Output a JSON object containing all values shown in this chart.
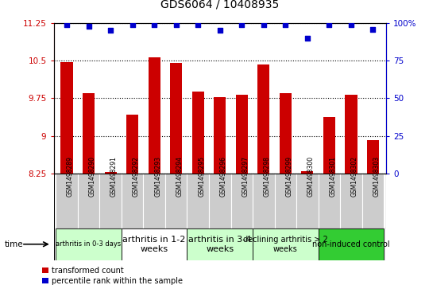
{
  "title": "GDS6064 / 10408935",
  "samples": [
    "GSM1498289",
    "GSM1498290",
    "GSM1498291",
    "GSM1498292",
    "GSM1498293",
    "GSM1498294",
    "GSM1498295",
    "GSM1498296",
    "GSM1498297",
    "GSM1498298",
    "GSM1498299",
    "GSM1498300",
    "GSM1498301",
    "GSM1498302",
    "GSM1498303"
  ],
  "red_values": [
    10.47,
    9.85,
    8.28,
    9.42,
    10.57,
    10.45,
    9.88,
    9.78,
    9.82,
    10.43,
    9.85,
    8.3,
    9.38,
    9.82,
    8.92
  ],
  "blue_values": [
    99,
    98,
    95,
    99,
    99,
    99,
    99,
    95,
    99,
    99,
    99,
    90,
    99,
    99,
    96
  ],
  "ylim_left": [
    8.25,
    11.25
  ],
  "ylim_right": [
    0,
    100
  ],
  "yticks_left": [
    8.25,
    9.0,
    9.75,
    10.5,
    11.25
  ],
  "ytick_labels_left": [
    "8.25",
    "9",
    "9.75",
    "10.5",
    "11.25"
  ],
  "yticks_right": [
    0,
    25,
    50,
    75,
    100
  ],
  "ytick_labels_right": [
    "0",
    "25",
    "50",
    "75",
    "100%"
  ],
  "groups": [
    {
      "label": "arthritis in 0-3 days",
      "start": 0,
      "end": 3,
      "color": "#ccffcc",
      "fontsize": 6
    },
    {
      "label": "arthritis in 1-2\nweeks",
      "start": 3,
      "end": 6,
      "color": "#ffffff",
      "fontsize": 8
    },
    {
      "label": "arthritis in 3-4\nweeks",
      "start": 6,
      "end": 9,
      "color": "#ccffcc",
      "fontsize": 8
    },
    {
      "label": "declining arthritis > 2\nweeks",
      "start": 9,
      "end": 12,
      "color": "#ccffcc",
      "fontsize": 7
    },
    {
      "label": "non-induced control",
      "start": 12,
      "end": 15,
      "color": "#33cc33",
      "fontsize": 7
    }
  ],
  "bar_color": "#cc0000",
  "dot_color": "#0000cc",
  "sample_bg": "#cccccc",
  "legend_red_label": "transformed count",
  "legend_blue_label": "percentile rank within the sample",
  "bar_width": 0.55,
  "baseline": 8.25
}
